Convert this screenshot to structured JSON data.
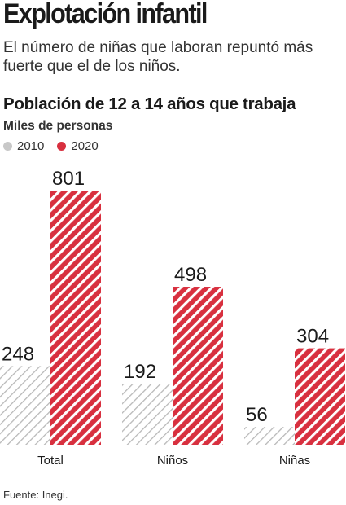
{
  "header": {
    "title": "Explotación infantil",
    "subtitle": "El número de niñas que laboran repuntó más fuerte que el de los niños."
  },
  "footer": {
    "source": "Fuente: Inegi."
  },
  "colors": {
    "series_2010": "#c8c8c8",
    "series_2020": "#d8303f"
  },
  "chart_data": {
    "type": "bar",
    "title": "Población de 12 a 14 años que trabaja",
    "ylabel": "Miles de personas",
    "categories": [
      "Total",
      "Niños",
      "Niñas"
    ],
    "series": [
      {
        "name": "2010",
        "values": [
          248,
          192,
          56
        ]
      },
      {
        "name": "2020",
        "values": [
          801,
          498,
          304
        ]
      }
    ],
    "ylim": [
      0,
      801
    ],
    "grid": false,
    "legend": "top-left"
  }
}
